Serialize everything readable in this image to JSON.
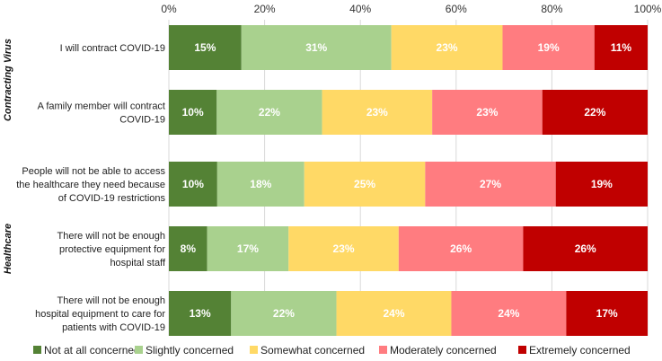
{
  "chart_data": {
    "type": "bar",
    "orientation": "horizontal",
    "stacked": true,
    "percent": true,
    "xlim": [
      0,
      100
    ],
    "xticks": [
      "0%",
      "20%",
      "40%",
      "60%",
      "80%",
      "100%"
    ],
    "categories": [
      "I will contract COVID-19",
      "A family member will contract COVID-19",
      "People will not be able to access the healthcare they need because of COVID-19 restrictions",
      "There will not be enough protective equipment for hospital staff",
      "There will not be enough hospital equipment to care for patients with COVID-19"
    ],
    "category_lines": [
      [
        "I will contract COVID-19"
      ],
      [
        "A family member will contract",
        "COVID-19"
      ],
      [
        "People will not be able to access",
        "the healthcare they need because",
        "of COVID-19 restrictions"
      ],
      [
        "There will not be enough",
        "protective equipment for",
        "hospital staff"
      ],
      [
        "There will not be enough",
        "hospital equipment to care for",
        "patients with COVID-19"
      ]
    ],
    "groups": [
      {
        "name": "Contracting Virus",
        "first": 0,
        "last": 1
      },
      {
        "name": "Healthcare",
        "first": 2,
        "last": 4
      }
    ],
    "series": [
      {
        "name": "Not at all concerned",
        "color": "#548235",
        "values": [
          15,
          10,
          10,
          8,
          13
        ],
        "labels": [
          "15%",
          "10%",
          "10%",
          "8%",
          "13%"
        ]
      },
      {
        "name": "Slightly concerned",
        "color": "#a9d18e",
        "values": [
          31,
          22,
          18,
          17,
          22
        ],
        "labels": [
          "31%",
          "22%",
          "18%",
          "17%",
          "22%"
        ]
      },
      {
        "name": "Somewhat concerned",
        "color": "#ffd966",
        "values": [
          23,
          23,
          25,
          23,
          24
        ],
        "labels": [
          "23%",
          "23%",
          "25%",
          "23%",
          "24%"
        ]
      },
      {
        "name": "Moderately concerned",
        "color": "#ff7c80",
        "values": [
          19,
          23,
          27,
          26,
          24
        ],
        "labels": [
          "19%",
          "23%",
          "27%",
          "26%",
          "24%"
        ]
      },
      {
        "name": "Extremely concerned",
        "color": "#c00000",
        "values": [
          11,
          22,
          19,
          26,
          17
        ],
        "labels": [
          "11%",
          "22%",
          "19%",
          "26%",
          "17%"
        ]
      }
    ]
  }
}
